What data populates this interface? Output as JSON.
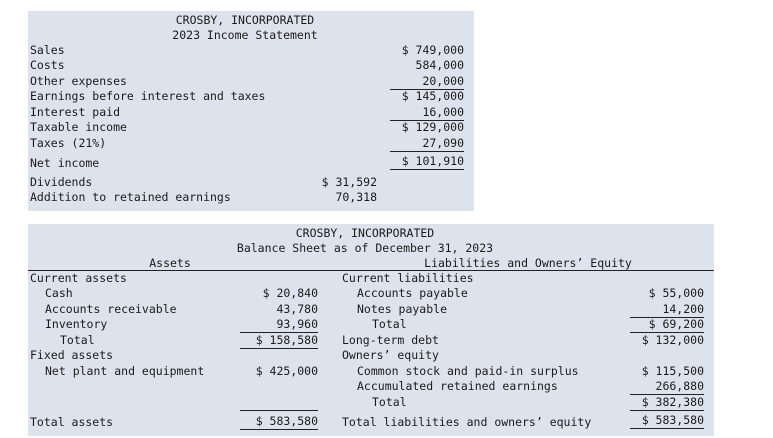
{
  "income": {
    "company": "CROSBY, INCORPORATED",
    "title": "2023 Income Statement",
    "rows": [
      {
        "label": "Sales",
        "value": "$ 749,000"
      },
      {
        "label": "Costs",
        "value": "584,000"
      },
      {
        "label": "Other expenses",
        "value": "20,000"
      },
      {
        "label": "Earnings before interest and taxes",
        "value": "$ 145,000"
      },
      {
        "label": "Interest paid",
        "value": "16,000"
      },
      {
        "label": "Taxable income",
        "value": "$ 129,000"
      },
      {
        "label": "Taxes (21%)",
        "value": "27,090"
      },
      {
        "label": "Net income",
        "value": "$ 101,910"
      }
    ],
    "dividends": {
      "label": "Dividends",
      "value": "$ 31,592"
    },
    "addition": {
      "label": "Addition to retained earnings",
      "value": "70,318"
    }
  },
  "balance": {
    "company": "CROSBY, INCORPORATED",
    "title": "Balance Sheet as of December 31, 2023",
    "assets_header": "Assets",
    "liab_header": "Liabilities and Owners’ Equity",
    "current_assets": "Current assets",
    "cash": {
      "label": "Cash",
      "value": "$ 20,840"
    },
    "ar": {
      "label": "Accounts receivable",
      "value": "43,780"
    },
    "inventory": {
      "label": "Inventory",
      "value": "93,960"
    },
    "ca_total": {
      "label": "Total",
      "value": "$ 158,580"
    },
    "fixed_assets": "Fixed assets",
    "net_plant": {
      "label": "Net plant and equipment",
      "value": "$ 425,000"
    },
    "total_assets": {
      "label": "Total assets",
      "value": "$ 583,580"
    },
    "current_liabilities": "Current liabilities",
    "ap": {
      "label": "Accounts payable",
      "value": "$ 55,000"
    },
    "np": {
      "label": "Notes payable",
      "value": "14,200"
    },
    "cl_total": {
      "label": "Total",
      "value": "$ 69,200"
    },
    "ltd": {
      "label": "Long-term debt",
      "value": "$ 132,000"
    },
    "owners_equity": "Owners’ equity",
    "common": {
      "label": "Common stock and paid-in surplus",
      "value": "$ 115,500"
    },
    "retained": {
      "label": "Accumulated retained earnings",
      "value": "266,880"
    },
    "oe_total": {
      "label": "Total",
      "value": "$ 382,380"
    },
    "total_le": {
      "label": "Total liabilities and owners’ equity",
      "value": "$ 583,580"
    }
  }
}
